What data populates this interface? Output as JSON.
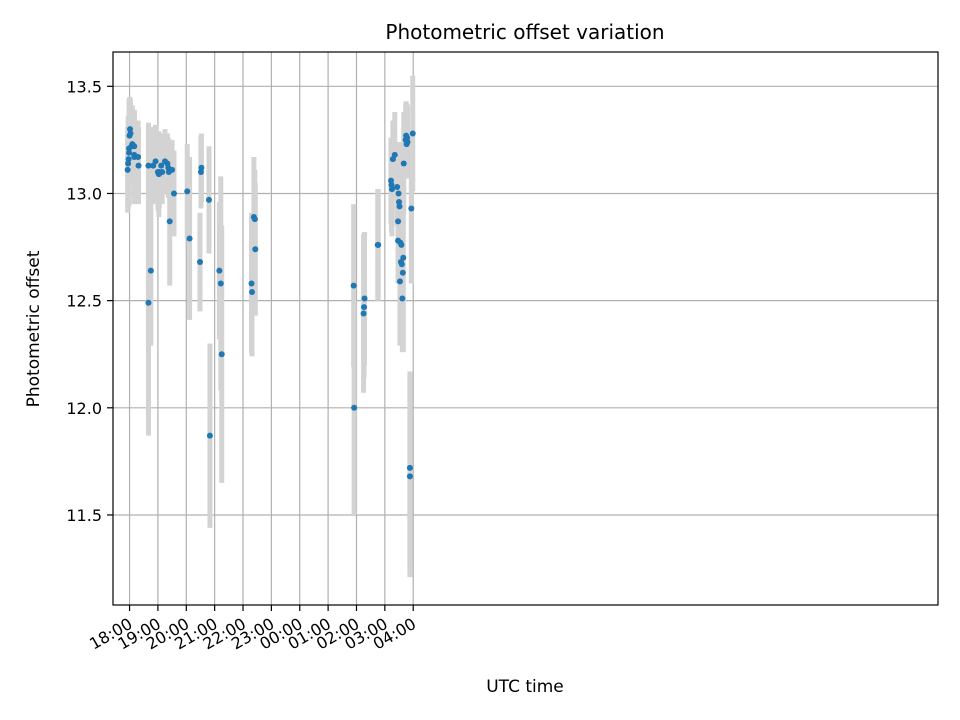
{
  "chart_data": {
    "type": "scatter",
    "title": "Photometric offset variation",
    "xlabel": "UTC time",
    "ylabel": "Photometric offset",
    "x_unit": "datetime",
    "xlim": [
      "17:25",
      "22:30+1d"
    ],
    "ylim": [
      11.08,
      13.66
    ],
    "x_ticks": [
      "18:00",
      "19:00",
      "20:00",
      "21:00",
      "22:00",
      "23:00",
      "00:00",
      "01:00",
      "02:00",
      "03:00",
      "04:00"
    ],
    "y_ticks": [
      "11.5",
      "12.0",
      "12.5",
      "13.0",
      "13.5"
    ],
    "grid": true,
    "colors": {
      "points": "#1f77b4",
      "errorbars": "#d3d3d3",
      "grid": "#b0b0b0"
    },
    "points": [
      {
        "x": "17:56",
        "y": 13.11,
        "err": 0.2
      },
      {
        "x": "17:57",
        "y": 13.14,
        "err": 0.22
      },
      {
        "x": "17:58",
        "y": 13.16,
        "err": 0.2
      },
      {
        "x": "17:59",
        "y": 13.19,
        "err": 0.25
      },
      {
        "x": "17:59",
        "y": 13.21,
        "err": 0.22
      },
      {
        "x": "18:00",
        "y": 13.27,
        "err": 0.18
      },
      {
        "x": "18:01",
        "y": 13.3,
        "err": 0.15
      },
      {
        "x": "18:02",
        "y": 13.28,
        "err": 0.16
      },
      {
        "x": "18:04",
        "y": 13.22,
        "err": 0.17
      },
      {
        "x": "18:06",
        "y": 13.23,
        "err": 0.18
      },
      {
        "x": "18:10",
        "y": 13.22,
        "err": 0.17
      },
      {
        "x": "18:10",
        "y": 13.18,
        "err": 0.2
      },
      {
        "x": "18:10",
        "y": 13.17,
        "err": 0.22
      },
      {
        "x": "18:18",
        "y": 13.17,
        "err": 0.17
      },
      {
        "x": "18:19",
        "y": 13.13,
        "err": 0.18
      },
      {
        "x": "18:40",
        "y": 13.13,
        "err": 0.2
      },
      {
        "x": "18:40",
        "y": 12.49,
        "err": 0.62
      },
      {
        "x": "18:45",
        "y": 12.64,
        "err": 0.35
      },
      {
        "x": "18:50",
        "y": 13.13,
        "err": 0.18
      },
      {
        "x": "18:55",
        "y": 13.15,
        "err": 0.17
      },
      {
        "x": "19:00",
        "y": 13.1,
        "err": 0.18
      },
      {
        "x": "19:02",
        "y": 13.09,
        "err": 0.2
      },
      {
        "x": "19:03",
        "y": 13.1,
        "err": 0.17
      },
      {
        "x": "19:07",
        "y": 13.13,
        "err": 0.15
      },
      {
        "x": "19:09",
        "y": 13.1,
        "err": 0.15
      },
      {
        "x": "19:15",
        "y": 13.15,
        "err": 0.15
      },
      {
        "x": "19:20",
        "y": 13.14,
        "err": 0.14
      },
      {
        "x": "19:22",
        "y": 13.12,
        "err": 0.14
      },
      {
        "x": "19:23",
        "y": 13.1,
        "err": 0.12
      },
      {
        "x": "19:25",
        "y": 12.87,
        "err": 0.3
      },
      {
        "x": "19:30",
        "y": 13.11,
        "err": 0.14
      },
      {
        "x": "19:34",
        "y": 13.0,
        "err": 0.2
      },
      {
        "x": "20:02",
        "y": 13.01,
        "err": 0.22
      },
      {
        "x": "20:07",
        "y": 12.79,
        "err": 0.38
      },
      {
        "x": "20:29",
        "y": 12.68,
        "err": 0.23
      },
      {
        "x": "20:31",
        "y": 13.1,
        "err": 0.17
      },
      {
        "x": "20:32",
        "y": 13.12,
        "err": 0.16
      },
      {
        "x": "20:48",
        "y": 12.97,
        "err": 0.25
      },
      {
        "x": "20:50",
        "y": 11.87,
        "err": 0.43
      },
      {
        "x": "21:10",
        "y": 12.64,
        "err": 0.32
      },
      {
        "x": "21:13",
        "y": 12.58,
        "err": 0.5
      },
      {
        "x": "21:15",
        "y": 12.25,
        "err": 0.6
      },
      {
        "x": "22:18",
        "y": 12.58,
        "err": 0.33
      },
      {
        "x": "22:19",
        "y": 12.54,
        "err": 0.3
      },
      {
        "x": "22:23",
        "y": 12.89,
        "err": 0.28
      },
      {
        "x": "22:25",
        "y": 12.88,
        "err": 0.23
      },
      {
        "x": "22:26",
        "y": 12.74,
        "err": 0.31
      },
      {
        "x": "01:54+1d",
        "y": 12.57,
        "err": 0.38
      },
      {
        "x": "01:55+1d",
        "y": 12.0,
        "err": 0.5
      },
      {
        "x": "02:15+1d",
        "y": 12.44,
        "err": 0.37
      },
      {
        "x": "02:16+1d",
        "y": 12.47,
        "err": 0.33
      },
      {
        "x": "02:17+1d",
        "y": 12.51,
        "err": 0.31
      },
      {
        "x": "02:45+1d",
        "y": 12.76,
        "err": 0.26
      },
      {
        "x": "02:46+1d",
        "y": 12.76,
        "err": 0.26
      },
      {
        "x": "03:13+1d",
        "y": 13.06,
        "err": 0.2
      },
      {
        "x": "03:14+1d",
        "y": 13.04,
        "err": 0.22
      },
      {
        "x": "03:15+1d",
        "y": 13.02,
        "err": 0.22
      },
      {
        "x": "03:17+1d",
        "y": 13.16,
        "err": 0.18
      },
      {
        "x": "03:21+1d",
        "y": 13.18,
        "err": 0.2
      },
      {
        "x": "03:26+1d",
        "y": 13.03,
        "err": 0.18
      },
      {
        "x": "03:28+1d",
        "y": 12.78,
        "err": 0.2
      },
      {
        "x": "03:28+1d",
        "y": 12.87,
        "err": 0.2
      },
      {
        "x": "03:29+1d",
        "y": 13.0,
        "err": 0.22
      },
      {
        "x": "03:30+1d",
        "y": 12.96,
        "err": 0.22
      },
      {
        "x": "03:31+1d",
        "y": 12.94,
        "err": 0.3
      },
      {
        "x": "03:32+1d",
        "y": 12.59,
        "err": 0.3
      },
      {
        "x": "03:33+1d",
        "y": 12.77,
        "err": 0.35
      },
      {
        "x": "03:34+1d",
        "y": 12.68,
        "err": 0.26
      },
      {
        "x": "03:35+1d",
        "y": 12.76,
        "err": 0.26
      },
      {
        "x": "03:36+1d",
        "y": 12.67,
        "err": 0.25
      },
      {
        "x": "03:37+1d",
        "y": 12.51,
        "err": 0.25
      },
      {
        "x": "03:38+1d",
        "y": 12.63,
        "err": 0.3
      },
      {
        "x": "03:39+1d",
        "y": 12.7,
        "err": 0.44
      },
      {
        "x": "03:40+1d",
        "y": 13.14,
        "err": 0.24
      },
      {
        "x": "03:44+1d",
        "y": 13.25,
        "err": 0.17
      },
      {
        "x": "03:45+1d",
        "y": 13.27,
        "err": 0.16
      },
      {
        "x": "03:46+1d",
        "y": 13.23,
        "err": 0.16
      },
      {
        "x": "03:47+1d",
        "y": 13.26,
        "err": 0.16
      },
      {
        "x": "03:48+1d",
        "y": 13.24,
        "err": 0.17
      },
      {
        "x": "03:53+1d",
        "y": 11.72,
        "err": 0.45
      },
      {
        "x": "03:53+1d",
        "y": 11.68,
        "err": 0.47
      },
      {
        "x": "03:56+1d",
        "y": 12.93,
        "err": 0.35
      },
      {
        "x": "03:59+1d",
        "y": 13.28,
        "err": 0.27
      }
    ]
  }
}
